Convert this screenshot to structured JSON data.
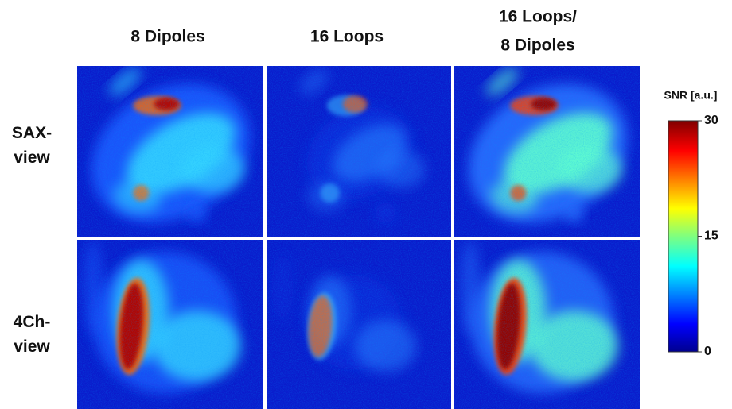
{
  "columns": [
    {
      "lines": [
        "8 Dipoles"
      ]
    },
    {
      "lines": [
        "16 Loops"
      ]
    },
    {
      "lines": [
        "16 Loops/",
        "8 Dipoles"
      ]
    }
  ],
  "rows": [
    {
      "lines": [
        "SAX-",
        "view"
      ]
    },
    {
      "lines": [
        "4Ch-",
        "view"
      ]
    }
  ],
  "colorbar": {
    "title": "SNR [a.u.]",
    "range": [
      0,
      30
    ],
    "ticks": [
      0,
      15,
      30
    ]
  }
}
